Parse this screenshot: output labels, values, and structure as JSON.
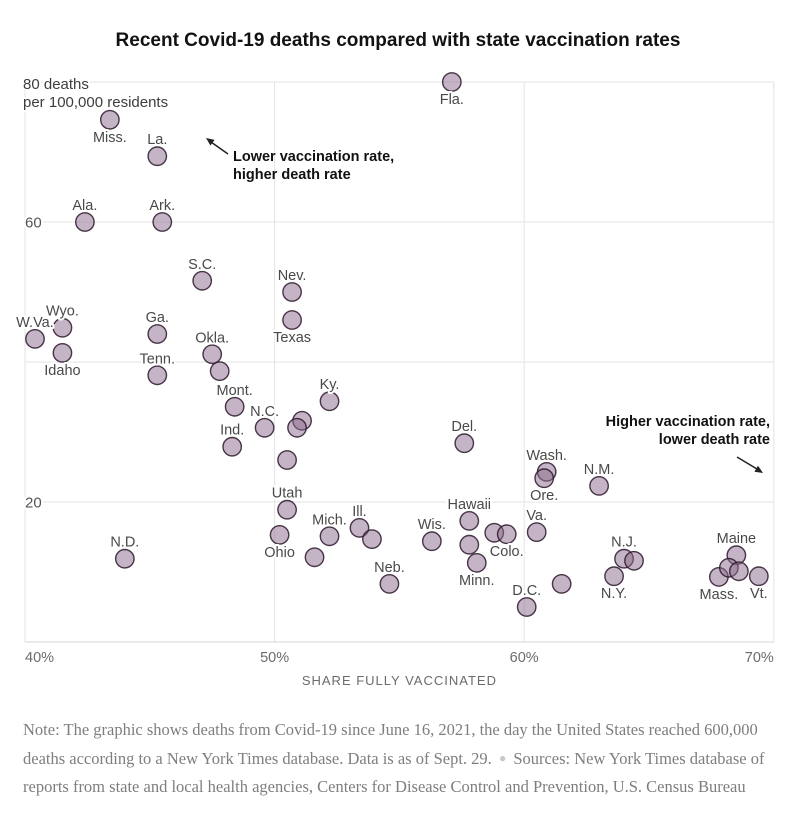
{
  "title": "Recent Covid-19 deaths compared with state vaccination rates",
  "annotations": {
    "top_left_line1": "Lower vaccination rate,",
    "top_left_line2": "higher death rate",
    "bottom_right_line1": "Higher vaccination rate,",
    "bottom_right_line2": "lower death rate"
  },
  "note": {
    "text1": "Note: The graphic shows deaths from Covid-19 since June 16, 2021, the day the United States reached 600,000 deaths according to a New York Times database. Data is as of Sept. 29.",
    "bullet": "●",
    "text2": "Sources: New York Times database of reports from state and local health agencies, Centers for Disease Control and Prevention, U.S. Census Bureau"
  },
  "colors": {
    "dot_fill": "#c8b5c8",
    "dot_stroke": "#2a182a",
    "gridline": "#e3e3e3",
    "title_text": "#121212",
    "note_text": "#7e7e7e"
  },
  "chart_data": {
    "type": "scatter",
    "title": "Recent Covid-19 deaths compared with state vaccination rates",
    "xlabel": "SHARE FULLY VACCINATED",
    "ylabel": "deaths per 100,000 residents",
    "y_axis_header": {
      "line1": "80 deaths",
      "line2": "per 100,000 residents"
    },
    "xlim": [
      40,
      70
    ],
    "ylim": [
      0,
      80
    ],
    "grid": true,
    "x_ticks": [
      {
        "value": 40,
        "label": "40%"
      },
      {
        "value": 50,
        "label": "50%"
      },
      {
        "value": 60,
        "label": "60%"
      },
      {
        "value": 70,
        "label": "70%"
      }
    ],
    "y_ticks": [
      {
        "value": 60,
        "label": "60"
      },
      {
        "value": 20,
        "label": "20"
      }
    ],
    "y_gridlines": [
      80,
      60,
      40,
      20
    ],
    "points": [
      {
        "state": "Fla.",
        "x": 57.1,
        "y": 80.0,
        "label_pos": "below"
      },
      {
        "state": "Miss.",
        "x": 43.4,
        "y": 74.6,
        "label_pos": "below"
      },
      {
        "state": "La.",
        "x": 45.3,
        "y": 69.4,
        "label_pos": "above"
      },
      {
        "state": "Ala.",
        "x": 42.4,
        "y": 60.0,
        "label_pos": "above"
      },
      {
        "state": "Ark.",
        "x": 45.5,
        "y": 60.0,
        "label_pos": "above"
      },
      {
        "state": "S.C.",
        "x": 47.1,
        "y": 51.6,
        "label_pos": "above"
      },
      {
        "state": "Nev.",
        "x": 50.7,
        "y": 50.0,
        "label_pos": "above"
      },
      {
        "state": "Texas",
        "x": 50.7,
        "y": 46.0,
        "label_pos": "below"
      },
      {
        "state": "Wyo.",
        "x": 41.5,
        "y": 44.9,
        "label_pos": "above"
      },
      {
        "state": "W.Va.",
        "x": 40.4,
        "y": 43.3,
        "label_pos": "above"
      },
      {
        "state": "Idaho",
        "x": 41.5,
        "y": 41.3,
        "label_pos": "below"
      },
      {
        "state": "Ga.",
        "x": 45.3,
        "y": 44.0,
        "label_pos": "above"
      },
      {
        "state": "Tenn.",
        "x": 45.3,
        "y": 38.1,
        "label_pos": "above"
      },
      {
        "state": "Okla.",
        "x": 47.5,
        "y": 41.1,
        "label_pos": "above"
      },
      {
        "state": "",
        "x": 47.8,
        "y": 38.7,
        "label_pos": null
      },
      {
        "state": "Mont.",
        "x": 48.4,
        "y": 33.6,
        "label_pos": "above"
      },
      {
        "state": "N.C.",
        "x": 49.6,
        "y": 30.6,
        "label_pos": "above"
      },
      {
        "state": "",
        "x": 51.1,
        "y": 31.6,
        "label_pos": null
      },
      {
        "state": "",
        "x": 50.9,
        "y": 30.6,
        "label_pos": null
      },
      {
        "state": "Ky.",
        "x": 52.2,
        "y": 34.4,
        "label_pos": "above"
      },
      {
        "state": "Ind.",
        "x": 48.3,
        "y": 27.9,
        "label_pos": "above"
      },
      {
        "state": "",
        "x": 50.5,
        "y": 26.0,
        "label_pos": null
      },
      {
        "state": "Utah",
        "x": 50.5,
        "y": 18.9,
        "label_pos": "above"
      },
      {
        "state": "Ohio",
        "x": 50.2,
        "y": 15.3,
        "label_pos": "below"
      },
      {
        "state": "Mich.",
        "x": 52.2,
        "y": 15.1,
        "label_pos": "above"
      },
      {
        "state": "Ill.",
        "x": 53.4,
        "y": 16.3,
        "label_pos": "above"
      },
      {
        "state": "",
        "x": 53.9,
        "y": 14.7,
        "label_pos": null
      },
      {
        "state": "",
        "x": 51.6,
        "y": 12.1,
        "label_pos": null
      },
      {
        "state": "Neb.",
        "x": 54.6,
        "y": 8.3,
        "label_pos": "above"
      },
      {
        "state": "Wis.",
        "x": 56.3,
        "y": 14.4,
        "label_pos": "above"
      },
      {
        "state": "Hawaii",
        "x": 57.8,
        "y": 17.3,
        "label_pos": "above"
      },
      {
        "state": "",
        "x": 57.8,
        "y": 13.9,
        "label_pos": null
      },
      {
        "state": "Minn.",
        "x": 58.1,
        "y": 11.3,
        "label_pos": "below"
      },
      {
        "state": "",
        "x": 58.8,
        "y": 15.6,
        "label_pos": null
      },
      {
        "state": "Colo.",
        "x": 59.3,
        "y": 15.4,
        "label_pos": "below"
      },
      {
        "state": "Va.",
        "x": 60.5,
        "y": 15.7,
        "label_pos": "above"
      },
      {
        "state": "D.C.",
        "x": 60.1,
        "y": 5.0,
        "label_pos": "above"
      },
      {
        "state": "",
        "x": 61.5,
        "y": 8.3,
        "label_pos": null
      },
      {
        "state": "Del.",
        "x": 57.6,
        "y": 28.4,
        "label_pos": "above"
      },
      {
        "state": "Wash.",
        "x": 60.9,
        "y": 24.3,
        "label_pos": "above"
      },
      {
        "state": "Ore.",
        "x": 60.8,
        "y": 23.4,
        "label_pos": "below"
      },
      {
        "state": "N.M.",
        "x": 63.0,
        "y": 22.3,
        "label_pos": "above"
      },
      {
        "state": "N.J.",
        "x": 64.0,
        "y": 11.9,
        "label_pos": "above"
      },
      {
        "state": "",
        "x": 64.4,
        "y": 11.6,
        "label_pos": null
      },
      {
        "state": "N.Y.",
        "x": 63.6,
        "y": 9.4,
        "label_pos": "below"
      },
      {
        "state": "Maine",
        "x": 68.5,
        "y": 12.4,
        "label_pos": "above"
      },
      {
        "state": "Mass.",
        "x": 67.8,
        "y": 9.3,
        "label_pos": "below"
      },
      {
        "state": "",
        "x": 68.2,
        "y": 10.6,
        "label_pos": null
      },
      {
        "state": "",
        "x": 68.6,
        "y": 10.1,
        "label_pos": null
      },
      {
        "state": "Vt.",
        "x": 69.4,
        "y": 9.4,
        "label_pos": "below"
      },
      {
        "state": "N.D.",
        "x": 44.0,
        "y": 11.9,
        "label_pos": "above"
      }
    ]
  }
}
